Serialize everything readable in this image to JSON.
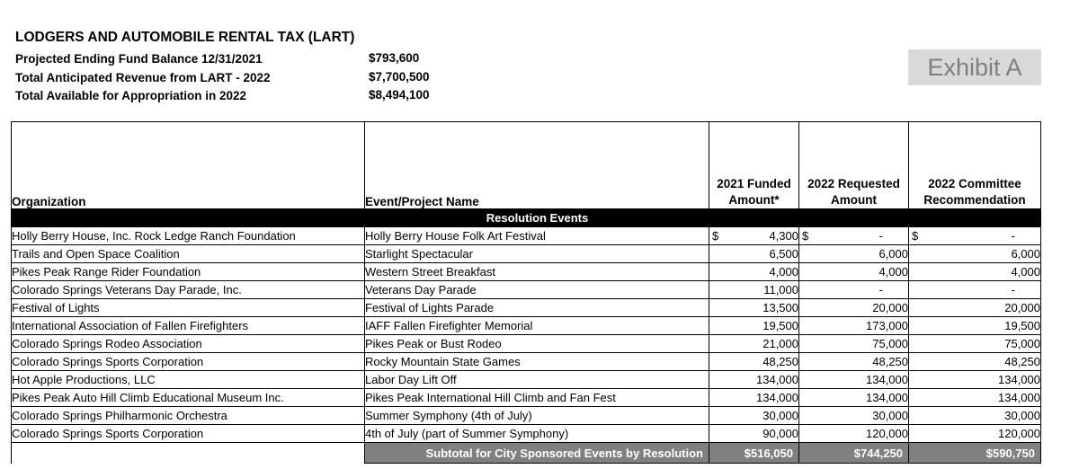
{
  "header": {
    "title": "LODGERS AND AUTOMOBILE RENTAL TAX (LART)",
    "summary": [
      {
        "label": "Projected Ending Fund Balance 12/31/2021",
        "value": "$793,600"
      },
      {
        "label": "Total Anticipated Revenue from LART - 2022",
        "value": "$7,700,500"
      },
      {
        "label": "Total Available for Appropriation in 2022",
        "value": "$8,494,100"
      }
    ],
    "exhibit_label": "Exhibit A"
  },
  "table": {
    "columns": [
      "Organization",
      "Event/Project Name",
      "2021 Funded\nAmount*",
      "2022 Requested\nAmount",
      "2022 Committee\nRecommendation"
    ],
    "section_header": "Resolution Events",
    "rows": [
      {
        "organization": "Holly Berry House, Inc. Rock Ledge Ranch Foundation",
        "event": "Holly Berry House Folk Art Festival",
        "funded_2021": "4,300",
        "requested_2022": "-",
        "committee_2022": "-",
        "dollar_sign": true
      },
      {
        "organization": "Trails and Open Space Coalition",
        "event": "Starlight Spectacular",
        "funded_2021": "6,500",
        "requested_2022": "6,000",
        "committee_2022": "6,000",
        "dollar_sign": false
      },
      {
        "organization": "Pikes Peak Range Rider Foundation",
        "event": "Western Street Breakfast",
        "funded_2021": "4,000",
        "requested_2022": "4,000",
        "committee_2022": "4,000",
        "dollar_sign": false
      },
      {
        "organization": "Colorado Springs Veterans Day Parade, Inc.",
        "event": "Veterans Day Parade",
        "funded_2021": "11,000",
        "requested_2022": "-",
        "committee_2022": "-",
        "dollar_sign": false
      },
      {
        "organization": "Festival of Lights",
        "event": "Festival of Lights Parade",
        "funded_2021": "13,500",
        "requested_2022": "20,000",
        "committee_2022": "20,000",
        "dollar_sign": false
      },
      {
        "organization": "International Association of Fallen Firefighters",
        "event": "IAFF Fallen Firefighter Memorial",
        "funded_2021": "19,500",
        "requested_2022": "173,000",
        "committee_2022": "19,500",
        "dollar_sign": false
      },
      {
        "organization": "Colorado Springs Rodeo Association",
        "event": "Pikes Peak or Bust Rodeo",
        "funded_2021": "21,000",
        "requested_2022": "75,000",
        "committee_2022": "75,000",
        "dollar_sign": false
      },
      {
        "organization": "Colorado Springs Sports Corporation",
        "event": "Rocky Mountain State Games",
        "funded_2021": "48,250",
        "requested_2022": "48,250",
        "committee_2022": "48,250",
        "dollar_sign": false
      },
      {
        "organization": "Hot Apple Productions, LLC",
        "event": "Labor Day Lift Off",
        "funded_2021": "134,000",
        "requested_2022": "134,000",
        "committee_2022": "134,000",
        "dollar_sign": false
      },
      {
        "organization": "Pikes Peak Auto Hill Climb Educational Museum Inc.",
        "event": "Pikes Peak International Hill Climb and Fan Fest",
        "funded_2021": "134,000",
        "requested_2022": "134,000",
        "committee_2022": "134,000",
        "dollar_sign": false
      },
      {
        "organization": "Colorado Springs Philharmonic Orchestra",
        "event": "Summer Symphony (4th of July)",
        "funded_2021": "30,000",
        "requested_2022": "30,000",
        "committee_2022": "30,000",
        "dollar_sign": false
      },
      {
        "organization": "Colorado Springs Sports Corporation",
        "event": "4th of July (part of Summer Symphony)",
        "funded_2021": "90,000",
        "requested_2022": "120,000",
        "committee_2022": "120,000",
        "dollar_sign": false
      }
    ],
    "subtotal": {
      "label": "Subtotal for City Sponsored Events by Resolution",
      "funded_2021": "$516,050",
      "requested_2022": "$744,250",
      "committee_2022": "$590,750"
    }
  },
  "colors": {
    "section_band": "#000000",
    "section_text": "#ffffff",
    "subtotal_bg": "#808080",
    "subtotal_text": "#ffffff",
    "exhibit_bg": "#d9d9d9",
    "exhibit_text": "#7f7f7f",
    "border": "#000000"
  }
}
